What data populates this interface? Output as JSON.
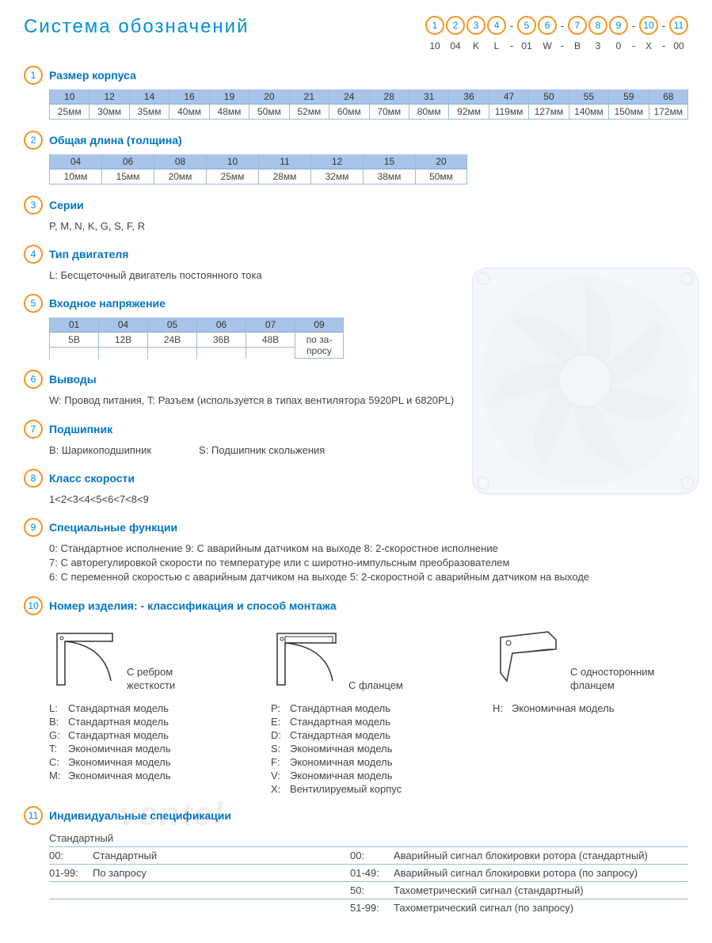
{
  "colors": {
    "accent_blue": "#0090d7",
    "dark_blue": "#0075c2",
    "orange": "#f7941e",
    "table_header_bg": "#a8c4e8",
    "table_border": "#a0b8d8",
    "text": "#444444"
  },
  "title": "Система обозначений",
  "code_header": {
    "positions": [
      "1",
      "2",
      "3",
      "4",
      "5",
      "6",
      "7",
      "8",
      "9",
      "10",
      "11"
    ],
    "dash_after": [
      3,
      5,
      8,
      9
    ],
    "example": [
      "10",
      "04",
      "K",
      "L",
      "01",
      "W",
      "B",
      "3",
      "0",
      "X",
      "00"
    ]
  },
  "sections": [
    {
      "num": "1",
      "title": "Размер корпуса",
      "type": "table",
      "table": {
        "cols": [
          {
            "h": "10",
            "v": "25мм"
          },
          {
            "h": "12",
            "v": "30мм"
          },
          {
            "h": "14",
            "v": "35мм"
          },
          {
            "h": "16",
            "v": "40мм"
          },
          {
            "h": "19",
            "v": "48мм"
          },
          {
            "h": "20",
            "v": "50мм"
          },
          {
            "h": "21",
            "v": "52мм"
          },
          {
            "h": "24",
            "v": "60мм"
          },
          {
            "h": "28",
            "v": "70мм"
          },
          {
            "h": "31",
            "v": "80мм"
          },
          {
            "h": "36",
            "v": "92мм"
          },
          {
            "h": "47",
            "v": "119мм"
          },
          {
            "h": "50",
            "v": "127мм"
          },
          {
            "h": "55",
            "v": "140мм"
          },
          {
            "h": "59",
            "v": "150мм"
          },
          {
            "h": "68",
            "v": "172мм"
          }
        ],
        "cls": "sz"
      }
    },
    {
      "num": "2",
      "title": "Общая длина (толщина)",
      "type": "table",
      "table": {
        "cols": [
          {
            "h": "04",
            "v": "10мм"
          },
          {
            "h": "06",
            "v": "15мм"
          },
          {
            "h": "08",
            "v": "20мм"
          },
          {
            "h": "10",
            "v": "25мм"
          },
          {
            "h": "11",
            "v": "28мм"
          },
          {
            "h": "12",
            "v": "32мм"
          },
          {
            "h": "15",
            "v": "38мм"
          },
          {
            "h": "20",
            "v": "50мм"
          }
        ],
        "cls": "len"
      }
    },
    {
      "num": "3",
      "title": "Серии",
      "type": "text",
      "text": "P, M, N, K, G, S, F, R"
    },
    {
      "num": "4",
      "title": "Тип двигателя",
      "type": "text",
      "text": "L: Бесщеточный двигатель постоянного тока"
    },
    {
      "num": "5",
      "title": "Входное напряжение",
      "type": "table",
      "table": {
        "cols": [
          {
            "h": "01",
            "v": "5В"
          },
          {
            "h": "04",
            "v": "12В"
          },
          {
            "h": "05",
            "v": "24В"
          },
          {
            "h": "06",
            "v": "36В"
          },
          {
            "h": "07",
            "v": "48В"
          },
          {
            "h": "09",
            "v": "по за-\nпросу"
          }
        ],
        "cls": "volt"
      },
      "fan_bg": true
    },
    {
      "num": "6",
      "title": "Выводы",
      "type": "text",
      "text": "W: Провод питания, T: Разъем (используется в типах вентилятора  5920PL и 6820PL)"
    },
    {
      "num": "7",
      "title": "Подшипник",
      "type": "bearing",
      "bearings": [
        {
          "k": "B:",
          "v": "Шарикоподшипник"
        },
        {
          "k": "S:",
          "v": "Подшипник скольжения"
        }
      ]
    },
    {
      "num": "8",
      "title": "Класс скорости",
      "type": "text",
      "text": "1<2<3<4<5<6<7<8<9"
    },
    {
      "num": "9",
      "title": "Специальные функции",
      "type": "lines",
      "lines": [
        "0: Стандартное исполнение   9:  С аварийным датчиком на выходе   8: 2-скоростное исполнение",
        "7: С авторегулировкой скорости по температуре или с широтно-импульсным преобразователем",
        "6: С переменной скоростью с аварийным датчиком на выходе   5: 2-скоростной с аварийным датчиком на выходе"
      ]
    },
    {
      "num": "10",
      "title": "Номер изделия: - классификация  и способ монтажа",
      "type": "mount",
      "mount": {
        "cols": [
          {
            "diagram": "rib",
            "label": "С ребром\nжесткости",
            "items": [
              {
                "k": "L:",
                "v": "Стандартная модель"
              },
              {
                "k": "B:",
                "v": "Стандартная модель"
              },
              {
                "k": "G:",
                "v": "Стандартная модель"
              },
              {
                "k": "T:",
                "v": "Экономичная модель"
              },
              {
                "k": "C:",
                "v": "Экономичная модель"
              },
              {
                "k": "M:",
                "v": "Экономичная модель"
              }
            ]
          },
          {
            "diagram": "flange",
            "label": "С фланцем",
            "items": [
              {
                "k": "P:",
                "v": "Стандартная модель"
              },
              {
                "k": "E:",
                "v": "Стандартная модель"
              },
              {
                "k": "D:",
                "v": "Стандартная модель"
              },
              {
                "k": "S:",
                "v": "Экономичная модель"
              },
              {
                "k": "F:",
                "v": "Экономичная модель"
              },
              {
                "k": "V:",
                "v": "Экономичная модель"
              },
              {
                "k": "X:",
                "v": "Вентилируемый корпус"
              }
            ]
          },
          {
            "diagram": "single",
            "label": "С односторонним\nфланцем",
            "items": [
              {
                "k": "H:",
                "v": "Экономичная модель"
              }
            ]
          }
        ]
      }
    },
    {
      "num": "11",
      "title": "Индивидуальные спецификации",
      "type": "spec",
      "spec": {
        "left_header": "Стандартный",
        "rows": [
          {
            "lk": "00:",
            "lv": "Стандартный",
            "rk": "00:",
            "rv": "Аварийный сигнал блокировки ротора (стандартный)"
          },
          {
            "lk": "01-99:",
            "lv": "По запросу",
            "rk": "01-49:",
            "rv": "Аварийный сигнал блокировки ротора (по запросу)"
          },
          {
            "lk": "",
            "lv": "",
            "rk": "50:",
            "rv": "Тахометрический сигнал (стандартный)"
          },
          {
            "lk": "",
            "lv": "",
            "rk": "51-99:",
            "rv": "Тахометрический сигнал (по запросу)"
          }
        ]
      }
    }
  ],
  "watermark": "ventel"
}
